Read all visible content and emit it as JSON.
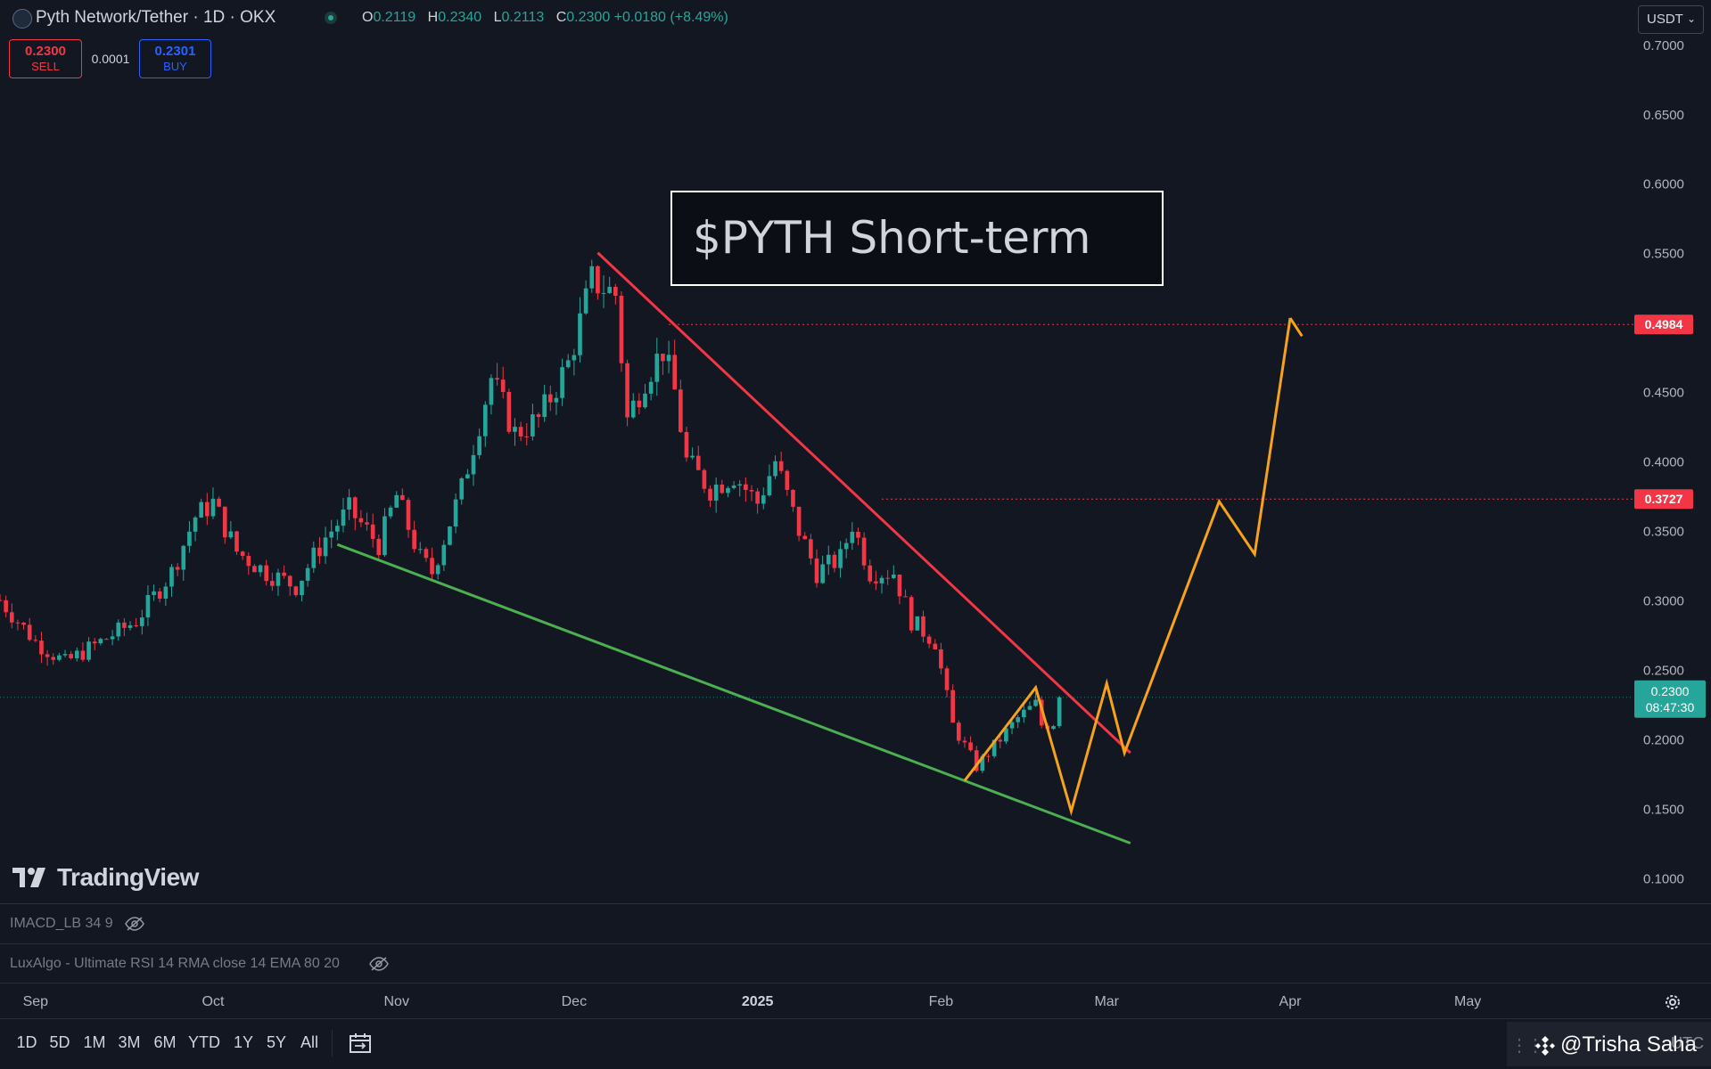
{
  "header": {
    "symbol_title": "Pyth Network/Tether · 1D · OKX",
    "ohlc": [
      {
        "key": "O",
        "value": "0.2119"
      },
      {
        "key": "H",
        "value": "0.2340"
      },
      {
        "key": "L",
        "value": "0.2113"
      },
      {
        "key": "C",
        "value": "0.2300"
      }
    ],
    "change": "+0.0180 (+8.49%)",
    "currency": "USDT"
  },
  "trade": {
    "sell_price": "0.2300",
    "sell_label": "SELL",
    "spread": "0.0001",
    "buy_price": "0.2301",
    "buy_label": "BUY"
  },
  "colors": {
    "background": "#131722",
    "up": "#26a69a",
    "down": "#f23645",
    "resistance_line": "#f23645",
    "support_line": "#4caf50",
    "projection": "#f7a21b"
  },
  "chart_data": {
    "type": "candlestick",
    "title": "$PYTH Short-term",
    "y_axis": {
      "ticks": [
        "0.7000",
        "0.6500",
        "0.6000",
        "0.5500",
        "0.5000",
        "0.4500",
        "0.4000",
        "0.3500",
        "0.3000",
        "0.2500",
        "0.2000",
        "0.1500",
        "0.1000"
      ],
      "range": [
        0.083,
        0.705
      ]
    },
    "x_axis": {
      "ticks": [
        {
          "label": "Sep",
          "date": "2024-09-01"
        },
        {
          "label": "Oct",
          "date": "2024-10-01"
        },
        {
          "label": "Nov",
          "date": "2024-11-01"
        },
        {
          "label": "Dec",
          "date": "2024-12-01"
        },
        {
          "label": "2025",
          "date": "2025-01-01",
          "bold": true
        },
        {
          "label": "Feb",
          "date": "2025-02-01"
        },
        {
          "label": "Mar",
          "date": "2025-03-01"
        },
        {
          "label": "Apr",
          "date": "2025-04-01"
        },
        {
          "label": "May",
          "date": "2025-05-01"
        }
      ],
      "range": [
        "2024-08-26",
        "2025-05-29"
      ]
    },
    "price_path": [
      [
        "2024-08-26",
        0.3
      ],
      [
        "2024-09-01",
        0.27
      ],
      [
        "2024-09-06",
        0.255
      ],
      [
        "2024-09-12",
        0.27
      ],
      [
        "2024-09-18",
        0.285
      ],
      [
        "2024-09-24",
        0.32
      ],
      [
        "2024-09-28",
        0.36
      ],
      [
        "2024-10-01",
        0.37
      ],
      [
        "2024-10-05",
        0.335
      ],
      [
        "2024-10-10",
        0.32
      ],
      [
        "2024-10-15",
        0.31
      ],
      [
        "2024-10-20",
        0.345
      ],
      [
        "2024-10-24",
        0.365
      ],
      [
        "2024-10-29",
        0.34
      ],
      [
        "2024-11-01",
        0.375
      ],
      [
        "2024-11-05",
        0.33
      ],
      [
        "2024-11-07",
        0.32
      ],
      [
        "2024-11-12",
        0.38
      ],
      [
        "2024-11-17",
        0.46
      ],
      [
        "2024-11-21",
        0.42
      ],
      [
        "2024-11-25",
        0.43
      ],
      [
        "2024-11-30",
        0.47
      ],
      [
        "2024-12-04",
        0.53
      ],
      [
        "2024-12-08",
        0.52
      ],
      [
        "2024-12-10",
        0.43
      ],
      [
        "2024-12-13",
        0.46
      ],
      [
        "2024-12-16",
        0.48
      ],
      [
        "2024-12-18",
        0.45
      ],
      [
        "2024-12-20",
        0.4
      ],
      [
        "2024-12-24",
        0.38
      ],
      [
        "2024-12-28",
        0.39
      ],
      [
        "2025-01-01",
        0.37
      ],
      [
        "2025-01-04",
        0.4
      ],
      [
        "2025-01-08",
        0.35
      ],
      [
        "2025-01-11",
        0.32
      ],
      [
        "2025-01-15",
        0.33
      ],
      [
        "2025-01-17",
        0.355
      ],
      [
        "2025-01-20",
        0.32
      ],
      [
        "2025-01-24",
        0.32
      ],
      [
        "2025-01-27",
        0.285
      ],
      [
        "2025-01-31",
        0.27
      ],
      [
        "2025-02-03",
        0.21
      ],
      [
        "2025-02-07",
        0.18
      ],
      [
        "2025-02-10",
        0.195
      ],
      [
        "2025-02-14",
        0.215
      ],
      [
        "2025-02-17",
        0.225
      ],
      [
        "2025-02-18",
        0.21
      ],
      [
        "2025-02-20",
        0.212
      ],
      [
        "2025-02-21",
        0.23
      ]
    ],
    "levels": [
      {
        "value": 0.4984,
        "label": "0.4984",
        "from": "2024-12-17"
      },
      {
        "value": 0.3727,
        "label": "0.3727",
        "from": "2025-01-22"
      }
    ],
    "current_price": {
      "value": 0.23,
      "label": "0.2300",
      "countdown": "08:47:30"
    },
    "trendlines": {
      "resistance": [
        [
          "2024-12-05",
          0.55
        ],
        [
          "2025-03-05",
          0.19
        ]
      ],
      "support": [
        [
          "2024-10-22",
          0.34
        ],
        [
          "2025-03-05",
          0.125
        ]
      ]
    },
    "projection": {
      "small_path": [
        [
          "2025-02-05",
          0.17
        ],
        [
          "2025-02-17",
          0.237
        ],
        [
          "2025-02-23",
          0.148
        ],
        [
          "2025-03-01",
          0.24
        ],
        [
          "2025-03-04",
          0.19
        ],
        [
          "2025-03-20",
          0.371
        ],
        [
          "2025-03-26",
          0.333
        ],
        [
          "2025-04-01",
          0.503
        ]
      ],
      "arrow_tip": [
        "2025-04-03",
        0.49
      ]
    }
  },
  "indicators": [
    {
      "label": "IMACD_LB 34 9"
    },
    {
      "label": "LuxAlgo - Ultimate RSI 14 RMA close 14 EMA 80 20"
    }
  ],
  "branding": {
    "logo_text": "TradingView"
  },
  "ranges": [
    "1D",
    "5D",
    "1M",
    "3M",
    "6M",
    "YTD",
    "1Y",
    "5Y",
    "All"
  ],
  "watermark": {
    "text": "@Trisha Saha",
    "utc": "UTC"
  }
}
